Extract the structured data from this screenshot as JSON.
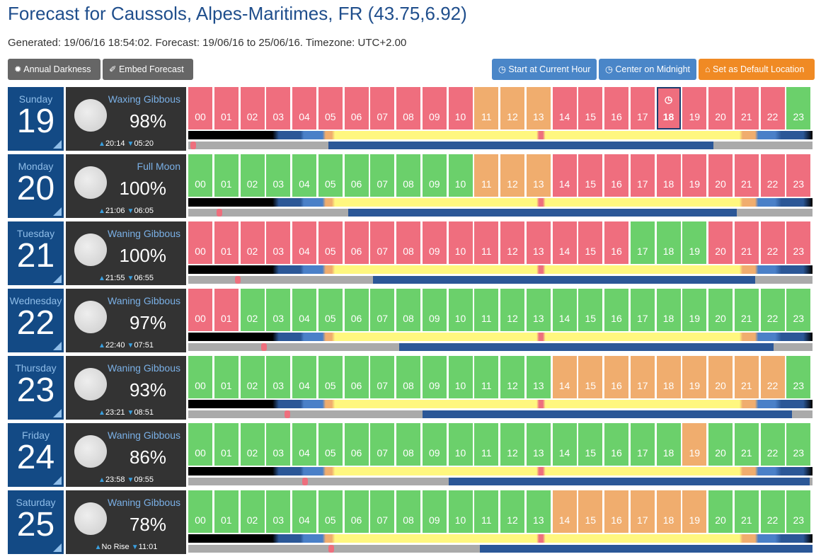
{
  "title": "Forecast for Caussols, Alpes-Maritimes, FR (43.75,6.92)",
  "generated": "Generated: 19/06/16 18:54:02. Forecast: 19/06/16 to 25/06/16. Timezone: UTC+2.00",
  "buttons": {
    "annual": "Annual Darkness",
    "embed": "Embed Forecast",
    "current": "Start at Current Hour",
    "midnight": "Center on Midnight",
    "default": "Set as Default Location"
  },
  "colors": {
    "r": "#ef6e7e",
    "o": "#f0ad6e",
    "g": "#6bd06b"
  },
  "current_hour": {
    "day": 0,
    "hour": 18
  },
  "days": [
    {
      "name": "Sunday",
      "date": "19",
      "phase": "Waxing Gibbous",
      "pct": "98%",
      "rise": "20:14",
      "set": "05:20",
      "hours": "rrrrrrrrrrrooorrrrrrrrrg",
      "moon_transit": 0.2,
      "moon_down_start": 5.4,
      "moon_down_end": 20.2
    },
    {
      "name": "Monday",
      "date": "20",
      "phase": "Full Moon",
      "pct": "100%",
      "rise": "21:06",
      "set": "06:05",
      "hours": "gggggggggggooorrrrrrrrrr",
      "moon_transit": 1.2,
      "moon_down_start": 6.15,
      "moon_down_end": 21.1
    },
    {
      "name": "Tuesday",
      "date": "21",
      "phase": "Waning Gibbous",
      "pct": "100%",
      "rise": "21:55",
      "set": "06:55",
      "hours": "rrrrrrrrrrrrrrrrrgggrrrr",
      "moon_transit": 1.9,
      "moon_down_start": 7.1,
      "moon_down_end": 21.8
    },
    {
      "name": "Wednesday",
      "date": "22",
      "phase": "Waning Gibbous",
      "pct": "97%",
      "rise": "22:40",
      "set": "07:51",
      "hours": "rrgggggggggggggggggggggg",
      "moon_transit": 2.9,
      "moon_down_start": 8.1,
      "moon_down_end": 22.5
    },
    {
      "name": "Thursday",
      "date": "23",
      "phase": "Waning Gibbous",
      "pct": "93%",
      "rise": "23:21",
      "set": "08:51",
      "hours": "ggggggggggggggooooooooog",
      "moon_transit": 3.8,
      "moon_down_start": 9.0,
      "moon_down_end": 23.2
    },
    {
      "name": "Friday",
      "date": "24",
      "phase": "Waning Gibbous",
      "pct": "86%",
      "rise": "23:58",
      "set": "09:55",
      "hours": "gggggggggggggggggggogggg",
      "moon_transit": 4.5,
      "moon_down_start": 10.0,
      "moon_down_end": 23.9
    },
    {
      "name": "Saturday",
      "date": "25",
      "phase": "Waning Gibbous",
      "pct": "78%",
      "rise": "No Rise",
      "set": "11:01",
      "hours": "ggggggggggggggoooooogggg",
      "moon_transit": 5.5,
      "moon_down_start": 11.2,
      "moon_down_end": 24
    }
  ]
}
